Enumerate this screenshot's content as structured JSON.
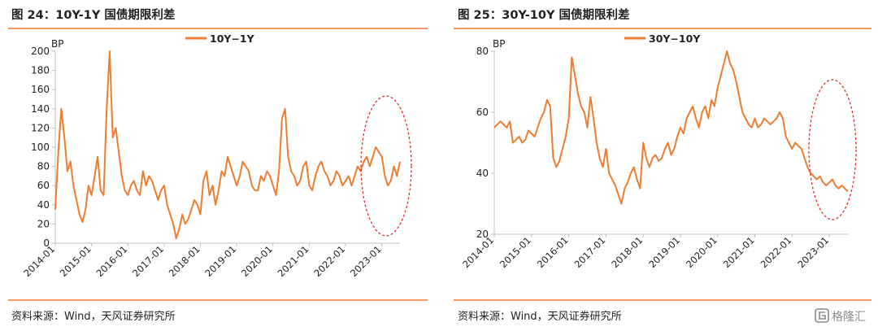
{
  "colors": {
    "accent": "#ed7d31",
    "series": "#ed7d31",
    "ellipse": "#e0302a",
    "axis": "#bfbfbf"
  },
  "watermark": {
    "text": "格隆汇",
    "icon": "gelonghui-logo-icon"
  },
  "charts": [
    {
      "title": "图 24：10Y-1Y 国债期限利差",
      "source": "资料来源：Wind，天风证券研究所"
    },
    {
      "title": "图 25：30Y-10Y 国债期限利差",
      "source": "资料来源：Wind，天风证券研究所"
    }
  ],
  "chart_data": [
    {
      "type": "line",
      "title": "图 24：10Y-1Y 国债期限利差",
      "ylabel": "BP",
      "xlabel": "",
      "ylim": [
        0,
        200
      ],
      "yticks": [
        0,
        20,
        40,
        60,
        80,
        100,
        120,
        140,
        160,
        180,
        200
      ],
      "xlim": [
        "2014-01",
        "2023-07"
      ],
      "xticks": [
        "2014-01",
        "2015-01",
        "2016-01",
        "2017-01",
        "2018-01",
        "2019-01",
        "2020-01",
        "2021-01",
        "2022-01",
        "2023-01"
      ],
      "legend": "top-center",
      "grid": false,
      "annotation": "dashed red ellipse around 2022-09 to 2023-07",
      "series": [
        {
          "name": "10Y−1Y",
          "x": [
            "2014-01",
            "2014-02",
            "2014-03",
            "2014-04",
            "2014-05",
            "2014-06",
            "2014-07",
            "2014-08",
            "2014-09",
            "2014-10",
            "2014-11",
            "2014-12",
            "2015-01",
            "2015-02",
            "2015-03",
            "2015-04",
            "2015-05",
            "2015-06",
            "2015-07",
            "2015-08",
            "2015-09",
            "2015-10",
            "2015-11",
            "2015-12",
            "2016-01",
            "2016-02",
            "2016-03",
            "2016-04",
            "2016-05",
            "2016-06",
            "2016-07",
            "2016-08",
            "2016-09",
            "2016-10",
            "2016-11",
            "2016-12",
            "2017-01",
            "2017-02",
            "2017-03",
            "2017-04",
            "2017-05",
            "2017-06",
            "2017-07",
            "2017-08",
            "2017-09",
            "2017-10",
            "2017-11",
            "2017-12",
            "2018-01",
            "2018-02",
            "2018-03",
            "2018-04",
            "2018-05",
            "2018-06",
            "2018-07",
            "2018-08",
            "2018-09",
            "2018-10",
            "2018-11",
            "2018-12",
            "2019-01",
            "2019-02",
            "2019-03",
            "2019-04",
            "2019-05",
            "2019-06",
            "2019-07",
            "2019-08",
            "2019-09",
            "2019-10",
            "2019-11",
            "2019-12",
            "2020-01",
            "2020-02",
            "2020-03",
            "2020-04",
            "2020-05",
            "2020-06",
            "2020-07",
            "2020-08",
            "2020-09",
            "2020-10",
            "2020-11",
            "2020-12",
            "2021-01",
            "2021-02",
            "2021-03",
            "2021-04",
            "2021-05",
            "2021-06",
            "2021-07",
            "2021-08",
            "2021-09",
            "2021-10",
            "2021-11",
            "2021-12",
            "2022-01",
            "2022-02",
            "2022-03",
            "2022-04",
            "2022-05",
            "2022-06",
            "2022-07",
            "2022-08",
            "2022-09",
            "2022-10",
            "2022-11",
            "2022-12",
            "2023-01",
            "2023-02",
            "2023-03",
            "2023-04",
            "2023-05",
            "2023-06",
            "2023-07"
          ],
          "values": [
            35,
            95,
            140,
            110,
            75,
            85,
            60,
            45,
            30,
            22,
            35,
            60,
            50,
            70,
            90,
            55,
            50,
            140,
            200,
            110,
            120,
            95,
            70,
            55,
            50,
            60,
            65,
            55,
            50,
            75,
            60,
            70,
            65,
            55,
            45,
            55,
            60,
            40,
            30,
            20,
            5,
            15,
            30,
            20,
            25,
            35,
            45,
            40,
            30,
            65,
            75,
            50,
            60,
            40,
            55,
            75,
            70,
            90,
            80,
            70,
            60,
            70,
            85,
            80,
            75,
            60,
            55,
            55,
            70,
            65,
            75,
            70,
            60,
            50,
            75,
            130,
            140,
            90,
            75,
            70,
            60,
            65,
            80,
            85,
            60,
            55,
            70,
            80,
            85,
            75,
            70,
            60,
            65,
            75,
            70,
            60,
            65,
            70,
            60,
            70,
            80,
            75,
            85,
            90,
            80,
            90,
            100,
            95,
            90,
            70,
            60,
            65,
            80,
            70,
            85
          ]
        }
      ]
    },
    {
      "type": "line",
      "title": "图 25：30Y-10Y 国债期限利差",
      "ylabel": "BP",
      "xlabel": "",
      "ylim": [
        20,
        80
      ],
      "yticks": [
        20,
        40,
        60,
        80
      ],
      "xlim": [
        "2014-01",
        "2023-07"
      ],
      "xticks": [
        "2014-01",
        "2015-01",
        "2016-01",
        "2017-01",
        "2018-01",
        "2019-01",
        "2020-01",
        "2021-01",
        "2022-01",
        "2023-01"
      ],
      "legend": "top-center",
      "grid": false,
      "annotation": "dashed red ellipse around 2022-09 to 2023-07",
      "series": [
        {
          "name": "30Y−10Y",
          "x": [
            "2014-01",
            "2014-02",
            "2014-03",
            "2014-04",
            "2014-05",
            "2014-06",
            "2014-07",
            "2014-08",
            "2014-09",
            "2014-10",
            "2014-11",
            "2014-12",
            "2015-01",
            "2015-02",
            "2015-03",
            "2015-04",
            "2015-05",
            "2015-06",
            "2015-07",
            "2015-08",
            "2015-09",
            "2015-10",
            "2015-11",
            "2015-12",
            "2016-01",
            "2016-02",
            "2016-03",
            "2016-04",
            "2016-05",
            "2016-06",
            "2016-07",
            "2016-08",
            "2016-09",
            "2016-10",
            "2016-11",
            "2016-12",
            "2017-01",
            "2017-02",
            "2017-03",
            "2017-04",
            "2017-05",
            "2017-06",
            "2017-07",
            "2017-08",
            "2017-09",
            "2017-10",
            "2017-11",
            "2017-12",
            "2018-01",
            "2018-02",
            "2018-03",
            "2018-04",
            "2018-05",
            "2018-06",
            "2018-07",
            "2018-08",
            "2018-09",
            "2018-10",
            "2018-11",
            "2018-12",
            "2019-01",
            "2019-02",
            "2019-03",
            "2019-04",
            "2019-05",
            "2019-06",
            "2019-07",
            "2019-08",
            "2019-09",
            "2019-10",
            "2019-11",
            "2019-12",
            "2020-01",
            "2020-02",
            "2020-03",
            "2020-04",
            "2020-05",
            "2020-06",
            "2020-07",
            "2020-08",
            "2020-09",
            "2020-10",
            "2020-11",
            "2020-12",
            "2021-01",
            "2021-02",
            "2021-03",
            "2021-04",
            "2021-05",
            "2021-06",
            "2021-07",
            "2021-08",
            "2021-09",
            "2021-10",
            "2021-11",
            "2021-12",
            "2022-01",
            "2022-02",
            "2022-03",
            "2022-04",
            "2022-05",
            "2022-06",
            "2022-07",
            "2022-08",
            "2022-09",
            "2022-10",
            "2022-11",
            "2022-12",
            "2023-01",
            "2023-02",
            "2023-03",
            "2023-04",
            "2023-05",
            "2023-06",
            "2023-07"
          ],
          "values": [
            55,
            56,
            57,
            56,
            55,
            57,
            50,
            51,
            52,
            50,
            51,
            54,
            53,
            52,
            55,
            58,
            60,
            64,
            62,
            45,
            42,
            44,
            48,
            52,
            58,
            78,
            72,
            66,
            62,
            60,
            55,
            65,
            58,
            50,
            45,
            42,
            48,
            40,
            38,
            36,
            33,
            30,
            35,
            37,
            40,
            42,
            38,
            35,
            50,
            45,
            42,
            45,
            46,
            44,
            45,
            48,
            50,
            46,
            48,
            52,
            55,
            53,
            58,
            60,
            62,
            58,
            55,
            60,
            62,
            58,
            64,
            62,
            68,
            72,
            76,
            80,
            76,
            74,
            70,
            65,
            60,
            58,
            56,
            55,
            58,
            55,
            56,
            58,
            57,
            56,
            57,
            58,
            60,
            58,
            52,
            50,
            48,
            50,
            49,
            48,
            45,
            42,
            40,
            39,
            38,
            39,
            37,
            36,
            37,
            38,
            36,
            35,
            36,
            35,
            34
          ]
        }
      ]
    }
  ]
}
